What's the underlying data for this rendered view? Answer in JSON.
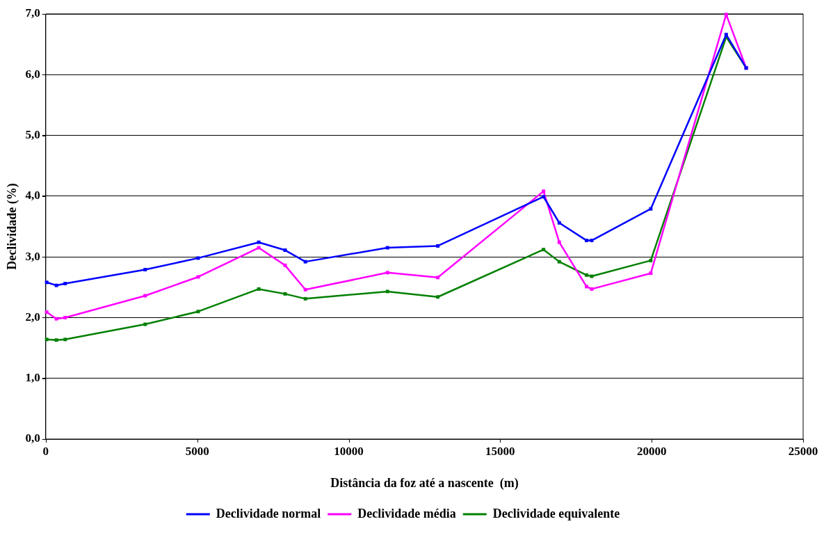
{
  "chart_data": {
    "type": "line",
    "xlabel": "Distância da foz até a nascente  (m)",
    "ylabel": "Declividade (%)",
    "x": [
      30,
      350,
      640,
      3280,
      5030,
      7030,
      7900,
      8570,
      11280,
      12940,
      16430,
      16950,
      17850,
      18020,
      19970,
      22460,
      23120
    ],
    "series": [
      {
        "name": "Declividade normal",
        "color": "#0000ff",
        "values": [
          2.58,
          2.53,
          2.56,
          2.79,
          2.98,
          3.24,
          3.11,
          2.92,
          3.15,
          3.18,
          3.99,
          3.56,
          3.27,
          3.27,
          3.79,
          6.66,
          6.11
        ]
      },
      {
        "name": "Declividade média",
        "color": "#ff00ff",
        "values": [
          2.09,
          1.98,
          2.0,
          2.36,
          2.67,
          3.15,
          2.86,
          2.46,
          2.74,
          2.66,
          4.08,
          3.24,
          2.51,
          2.47,
          2.73,
          6.99,
          6.11
        ]
      },
      {
        "name": "Declividade equivalente",
        "color": "#008000",
        "values": [
          1.64,
          1.63,
          1.64,
          1.89,
          2.1,
          2.47,
          2.39,
          2.31,
          2.43,
          2.34,
          3.12,
          2.92,
          2.7,
          2.68,
          2.94,
          6.62,
          6.11
        ]
      }
    ],
    "xlim": [
      0,
      25000
    ],
    "xticks": [
      0,
      5000,
      10000,
      15000,
      20000,
      25000
    ],
    "ylim": [
      0,
      7
    ],
    "yticks": [
      {
        "value": 0,
        "label": "0,0"
      },
      {
        "value": 1,
        "label": "1,0"
      },
      {
        "value": 2,
        "label": "2,0"
      },
      {
        "value": 3,
        "label": "3,0"
      },
      {
        "value": 4,
        "label": "4,0"
      },
      {
        "value": 5,
        "label": "5,0"
      },
      {
        "value": 6,
        "label": "6,0"
      },
      {
        "value": 7,
        "label": "7,0"
      }
    ],
    "grid": "y",
    "legend": "bottom",
    "marker": "square",
    "line_style": "solid"
  }
}
